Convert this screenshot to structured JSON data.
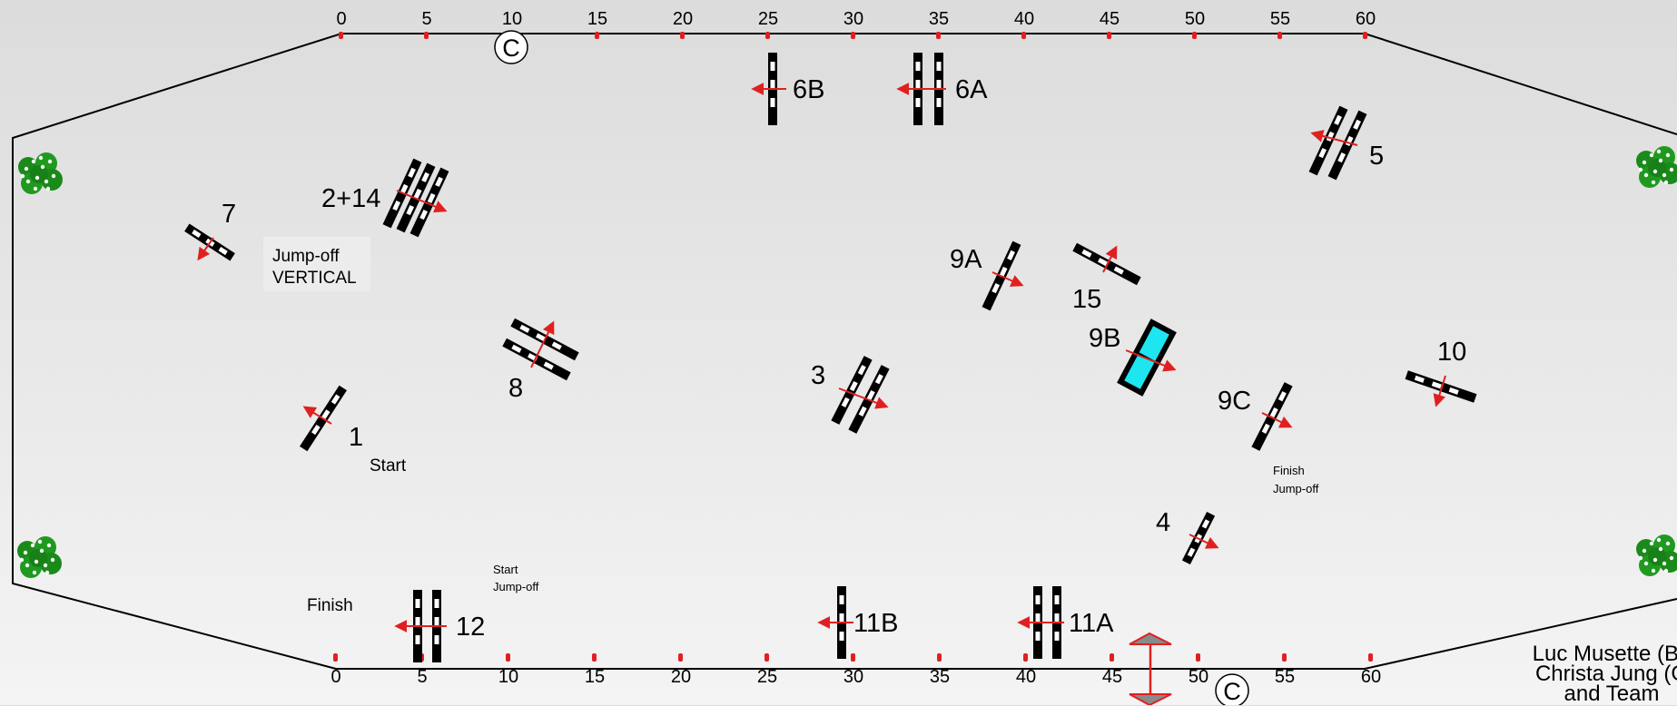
{
  "diagram": {
    "top_ruler": [
      "0",
      "5",
      "10",
      "15",
      "20",
      "25",
      "30",
      "35",
      "40",
      "45",
      "50",
      "55",
      "60"
    ],
    "bottom_ruler": [
      "0",
      "5",
      "10",
      "15",
      "20",
      "25",
      "30",
      "35",
      "40",
      "45",
      "50",
      "55",
      "60"
    ],
    "judge_marker": "C",
    "colors": {
      "fence_black": "#000000",
      "fence_white": "#ffffff",
      "water": "#1ee6f0",
      "arrow_red": "#e02020",
      "bush_green": "#1a8a1a"
    },
    "obstacles": {
      "o7": "7",
      "o2_14": "2+14",
      "o6B": "6B",
      "o6A": "6A",
      "o5": "5",
      "o9A": "9A",
      "o15": "15",
      "o9B": "9B",
      "o10": "10",
      "o9C": "9C",
      "o8": "8",
      "o3": "3",
      "o1": "1",
      "o4": "4",
      "o12": "12",
      "o11B": "11B",
      "o11A": "11A"
    },
    "notes": {
      "jumpoff_vertical_1": "Jump-off",
      "jumpoff_vertical_2": "VERTICAL",
      "start": "Start",
      "finish": "Finish",
      "start_jumpoff_1": "Start",
      "start_jumpoff_2": "Jump-off",
      "finish_jumpoff_1": "Finish",
      "finish_jumpoff_2": "Jump-off"
    },
    "credits": {
      "line1": "Luc Musette (Be",
      "line2": "Christa Jung (G",
      "line3": "and Team"
    }
  }
}
